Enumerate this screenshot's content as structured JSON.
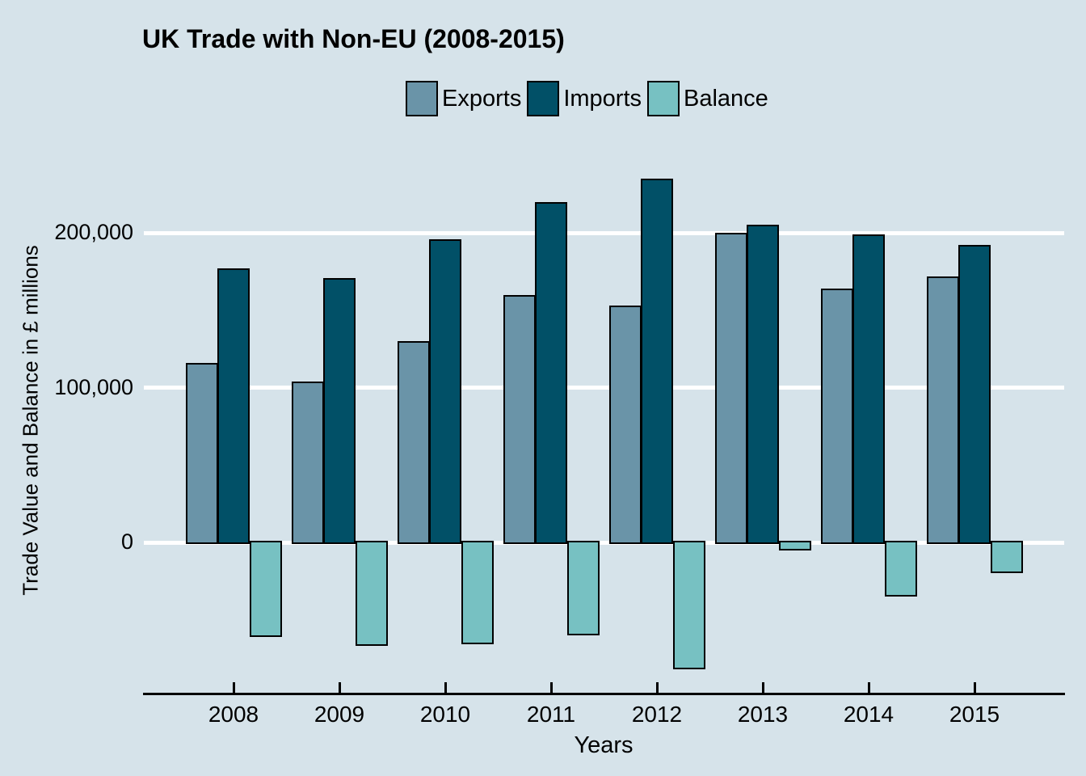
{
  "title": "UK Trade with Non-EU (2008-2015)",
  "colors": {
    "background": "#d6e3ea",
    "gridline": "#ffffff",
    "axis": "#000000",
    "exports": "#6a94a8",
    "imports": "#015067",
    "balance": "#77c1c2"
  },
  "chart_data": {
    "type": "bar",
    "title": "UK Trade with Non-EU (2008-2015)",
    "xlabel": "Years",
    "ylabel": "Trade Value and Balance in £ millions",
    "categories": [
      "2008",
      "2009",
      "2010",
      "2011",
      "2012",
      "2013",
      "2014",
      "2015"
    ],
    "series": [
      {
        "name": "Exports",
        "color": "#6a94a8",
        "values": [
          116000,
          104000,
          130000,
          160000,
          153000,
          200000,
          164000,
          172000
        ]
      },
      {
        "name": "Imports",
        "color": "#015067",
        "values": [
          177000,
          171000,
          196000,
          220000,
          235000,
          205000,
          199000,
          192000
        ]
      },
      {
        "name": "Balance",
        "color": "#77c1c2",
        "values": [
          -61000,
          -67000,
          -66000,
          -60000,
          -82000,
          -5000,
          -35000,
          -20000
        ]
      }
    ],
    "yticks": [
      0,
      100000,
      200000
    ],
    "ytick_labels": [
      "0",
      "100,000",
      "200,000"
    ],
    "ylim": [
      -97000,
      259000
    ],
    "grid": true,
    "legend_position": "top"
  }
}
